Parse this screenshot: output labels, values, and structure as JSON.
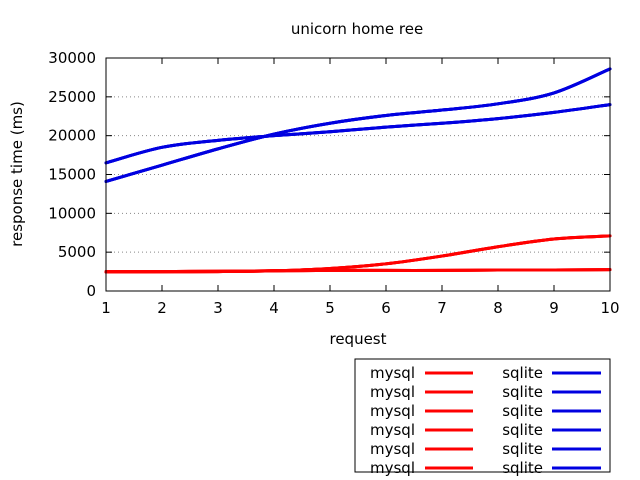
{
  "chart_data": {
    "type": "line",
    "title": "unicorn home ree",
    "xlabel": "request",
    "ylabel": "response time (ms)",
    "xlim": [
      1,
      10
    ],
    "ylim": [
      0,
      30000
    ],
    "xticks": [
      "1",
      "2",
      "3",
      "4",
      "5",
      "6",
      "7",
      "8",
      "9",
      "10"
    ],
    "yticks": [
      "0",
      "5000",
      "10000",
      "15000",
      "20000",
      "25000",
      "30000"
    ],
    "grid": "horizontal-dotted",
    "legend_position": "bottom-right",
    "x": [
      1,
      2,
      3,
      4,
      5,
      6,
      7,
      8,
      9,
      10
    ],
    "series": [
      {
        "name": "mysql",
        "color": "#ff0000",
        "values": [
          2500,
          2500,
          2550,
          2600,
          2650,
          2650,
          2650,
          2700,
          2700,
          2750
        ]
      },
      {
        "name": "mysql",
        "color": "#ff0000",
        "values": [
          2450,
          2480,
          2500,
          2600,
          2900,
          3500,
          4500,
          5700,
          6700,
          7100
        ]
      },
      {
        "name": "mysql",
        "color": "#ff0000",
        "values": [
          2500,
          2500,
          2550,
          2600,
          2650,
          2650,
          2650,
          2700,
          2700,
          2750
        ]
      },
      {
        "name": "mysql",
        "color": "#ff0000",
        "values": [
          2450,
          2480,
          2500,
          2600,
          2900,
          3500,
          4500,
          5700,
          6700,
          7100
        ]
      },
      {
        "name": "mysql",
        "color": "#ff0000",
        "values": [
          2500,
          2500,
          2550,
          2600,
          2650,
          2650,
          2650,
          2700,
          2700,
          2750
        ]
      },
      {
        "name": "mysql",
        "color": "#ff0000",
        "values": [
          2450,
          2480,
          2500,
          2600,
          2900,
          3500,
          4500,
          5700,
          6700,
          7100
        ]
      },
      {
        "name": "sqlite",
        "color": "#0000e0",
        "values": [
          16500,
          18500,
          19400,
          20000,
          20500,
          21100,
          21600,
          22200,
          23000,
          24000
        ]
      },
      {
        "name": "sqlite",
        "color": "#0000e0",
        "values": [
          14100,
          16200,
          18300,
          20200,
          21600,
          22600,
          23300,
          24100,
          25500,
          28600
        ]
      },
      {
        "name": "sqlite",
        "color": "#0000e0",
        "values": [
          16500,
          18500,
          19400,
          20000,
          20500,
          21100,
          21600,
          22200,
          23000,
          24000
        ]
      },
      {
        "name": "sqlite",
        "color": "#0000e0",
        "values": [
          14100,
          16200,
          18300,
          20200,
          21600,
          22600,
          23300,
          24100,
          25500,
          28600
        ]
      },
      {
        "name": "sqlite",
        "color": "#0000e0",
        "values": [
          16500,
          18500,
          19400,
          20000,
          20500,
          21100,
          21600,
          22200,
          23000,
          24000
        ]
      },
      {
        "name": "sqlite",
        "color": "#0000e0",
        "values": [
          14100,
          16200,
          18300,
          20200,
          21600,
          22600,
          23300,
          24100,
          25500,
          28600
        ]
      }
    ]
  }
}
